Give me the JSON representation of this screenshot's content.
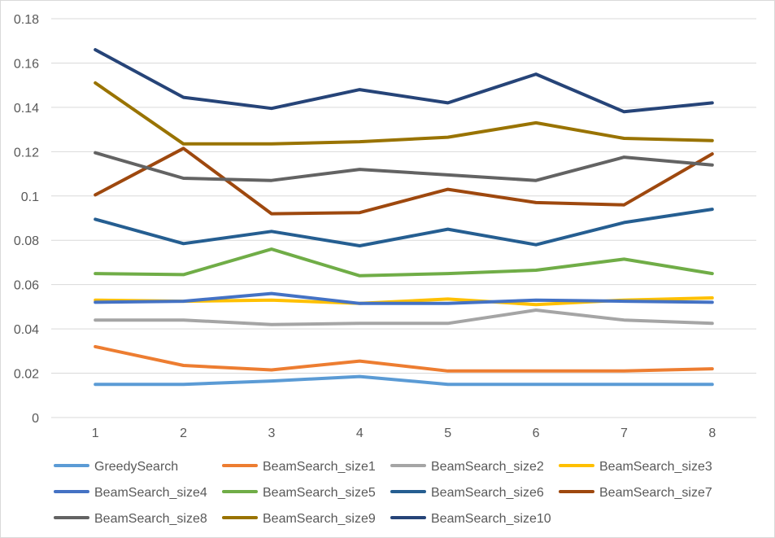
{
  "chart_data": {
    "type": "line",
    "categories": [
      "1",
      "2",
      "3",
      "4",
      "5",
      "6",
      "7",
      "8"
    ],
    "ylim": [
      0,
      0.18
    ],
    "yticks": [
      "0",
      "0.02",
      "0.04",
      "0.06",
      "0.08",
      "0.1",
      "0.12",
      "0.14",
      "0.16",
      "0.18"
    ],
    "ytick_values": [
      0,
      0.02,
      0.04,
      0.06,
      0.08,
      0.1,
      0.12,
      0.14,
      0.16,
      0.18
    ],
    "grid": "horizontal",
    "legend": "bottom",
    "series": [
      {
        "name": "GreedySearch",
        "color": "#5b9bd5",
        "values": [
          0.015,
          0.015,
          0.0165,
          0.0185,
          0.015,
          0.015,
          0.015,
          0.015
        ]
      },
      {
        "name": "BeamSearch_size1",
        "color": "#ed7d31",
        "values": [
          0.032,
          0.0235,
          0.0215,
          0.0255,
          0.021,
          0.021,
          0.021,
          0.022
        ]
      },
      {
        "name": "BeamSearch_size2",
        "color": "#a5a5a5",
        "values": [
          0.044,
          0.044,
          0.042,
          0.0425,
          0.0425,
          0.0485,
          0.044,
          0.0425
        ]
      },
      {
        "name": "BeamSearch_size3",
        "color": "#ffc000",
        "values": [
          0.053,
          0.0525,
          0.053,
          0.0515,
          0.0535,
          0.051,
          0.053,
          0.054
        ]
      },
      {
        "name": "BeamSearch_size4",
        "color": "#4472c4",
        "values": [
          0.052,
          0.0525,
          0.056,
          0.0515,
          0.0515,
          0.053,
          0.0525,
          0.052
        ]
      },
      {
        "name": "BeamSearch_size5",
        "color": "#70ad47",
        "values": [
          0.065,
          0.0645,
          0.076,
          0.064,
          0.065,
          0.0665,
          0.0715,
          0.065
        ]
      },
      {
        "name": "BeamSearch_size6",
        "color": "#255e91",
        "values": [
          0.0895,
          0.0785,
          0.084,
          0.0775,
          0.085,
          0.078,
          0.088,
          0.094
        ]
      },
      {
        "name": "BeamSearch_size7",
        "color": "#9e480e",
        "values": [
          0.1005,
          0.1215,
          0.092,
          0.0925,
          0.103,
          0.097,
          0.096,
          0.119
        ]
      },
      {
        "name": "BeamSearch_size8",
        "color": "#636363",
        "values": [
          0.1195,
          0.108,
          0.107,
          0.112,
          0.1095,
          0.107,
          0.1175,
          0.114
        ]
      },
      {
        "name": "BeamSearch_size9",
        "color": "#997300",
        "values": [
          0.151,
          0.1235,
          0.1235,
          0.1245,
          0.1265,
          0.133,
          0.126,
          0.125
        ]
      },
      {
        "name": "BeamSearch_size10",
        "color": "#264478",
        "values": [
          0.166,
          0.1445,
          0.1395,
          0.148,
          0.142,
          0.155,
          0.138,
          0.142
        ]
      }
    ]
  }
}
